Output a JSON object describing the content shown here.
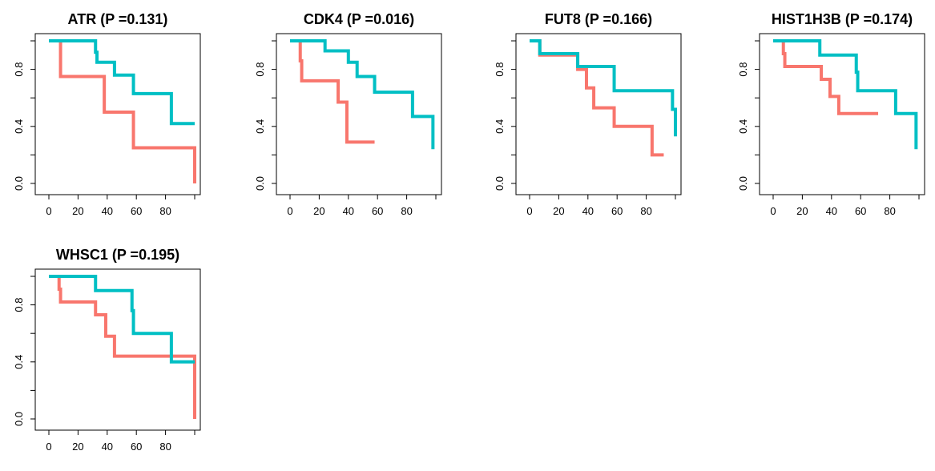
{
  "chart_data": [
    {
      "type": "line",
      "title": "ATR (P =0.131)",
      "xlabel": "",
      "ylabel": "",
      "xlim": [
        0,
        100
      ],
      "ylim": [
        0,
        1
      ],
      "xticks": [
        0,
        20,
        40,
        60,
        80
      ],
      "xtick_labels": [
        "0",
        "20",
        "40",
        "60",
        "80"
      ],
      "yticks": [
        0,
        0.4,
        0.8
      ],
      "ytick_labels": [
        "0.0",
        "0.4",
        "0.8"
      ],
      "step": true,
      "series": [
        {
          "color": "#F8766D",
          "x": [
            0,
            7,
            8,
            38,
            58,
            100,
            100
          ],
          "y": [
            1.0,
            1.0,
            0.75,
            0.5,
            0.25,
            0.25,
            0.0
          ]
        },
        {
          "color": "#00BFC4",
          "x": [
            0,
            32,
            33,
            45,
            58,
            84,
            100
          ],
          "y": [
            1.0,
            0.92,
            0.85,
            0.76,
            0.63,
            0.42,
            0.42
          ]
        }
      ]
    },
    {
      "type": "line",
      "title": "CDK4 (P =0.016)",
      "xlabel": "",
      "ylabel": "",
      "xlim": [
        0,
        100
      ],
      "ylim": [
        0,
        1
      ],
      "xticks": [
        0,
        20,
        40,
        60,
        80
      ],
      "xtick_labels": [
        "0",
        "20",
        "40",
        "60",
        "80"
      ],
      "yticks": [
        0,
        0.4,
        0.8
      ],
      "ytick_labels": [
        "0.0",
        "0.4",
        "0.8"
      ],
      "step": true,
      "series": [
        {
          "color": "#F8766D",
          "x": [
            0,
            7,
            8,
            33,
            39,
            58
          ],
          "y": [
            1.0,
            0.86,
            0.72,
            0.57,
            0.29,
            0.29
          ]
        },
        {
          "color": "#00BFC4",
          "x": [
            0,
            24,
            40,
            46,
            58,
            84,
            98,
            98
          ],
          "y": [
            1.0,
            0.93,
            0.85,
            0.75,
            0.64,
            0.47,
            0.35,
            0.24
          ]
        }
      ]
    },
    {
      "type": "line",
      "title": "FUT8 (P =0.166)",
      "xlabel": "",
      "ylabel": "",
      "xlim": [
        0,
        100
      ],
      "ylim": [
        0,
        1
      ],
      "xticks": [
        0,
        20,
        40,
        60,
        80
      ],
      "xtick_labels": [
        "0",
        "20",
        "40",
        "60",
        "80"
      ],
      "yticks": [
        0,
        0.4,
        0.8
      ],
      "ytick_labels": [
        "0.0",
        "0.4",
        "0.8"
      ],
      "step": true,
      "series": [
        {
          "color": "#F8766D",
          "x": [
            0,
            7,
            33,
            39,
            44,
            58,
            84,
            92
          ],
          "y": [
            1.0,
            0.9,
            0.8,
            0.67,
            0.53,
            0.4,
            0.2,
            0.2
          ]
        },
        {
          "color": "#00BFC4",
          "x": [
            0,
            7,
            33,
            58,
            98,
            100
          ],
          "y": [
            1.0,
            0.91,
            0.82,
            0.65,
            0.52,
            0.33
          ]
        }
      ]
    },
    {
      "type": "line",
      "title": "HIST1H3B (P =0.174)",
      "xlabel": "",
      "ylabel": "",
      "xlim": [
        0,
        100
      ],
      "ylim": [
        0,
        1
      ],
      "xticks": [
        0,
        20,
        40,
        60,
        80
      ],
      "xtick_labels": [
        "0",
        "20",
        "40",
        "60",
        "80"
      ],
      "yticks": [
        0,
        0.4,
        0.8
      ],
      "ytick_labels": [
        "0.0",
        "0.4",
        "0.8"
      ],
      "step": true,
      "series": [
        {
          "color": "#F8766D",
          "x": [
            0,
            7,
            8,
            33,
            39,
            45,
            72
          ],
          "y": [
            1.0,
            0.91,
            0.82,
            0.73,
            0.61,
            0.49,
            0.49
          ]
        },
        {
          "color": "#00BFC4",
          "x": [
            0,
            32,
            57,
            58,
            84,
            98,
            98
          ],
          "y": [
            1.0,
            0.9,
            0.78,
            0.65,
            0.49,
            0.35,
            0.24
          ]
        }
      ]
    },
    {
      "type": "line",
      "title": "WHSC1 (P =0.195)",
      "xlabel": "",
      "ylabel": "",
      "xlim": [
        0,
        100
      ],
      "ylim": [
        0,
        1
      ],
      "xticks": [
        0,
        20,
        40,
        60,
        80
      ],
      "xtick_labels": [
        "0",
        "20",
        "40",
        "60",
        "80"
      ],
      "yticks": [
        0,
        0.4,
        0.8
      ],
      "ytick_labels": [
        "0.0",
        "0.4",
        "0.8"
      ],
      "step": true,
      "series": [
        {
          "color": "#F8766D",
          "x": [
            0,
            7,
            8,
            32,
            39,
            45,
            100,
            100
          ],
          "y": [
            1.0,
            0.91,
            0.82,
            0.73,
            0.58,
            0.44,
            0.44,
            0.0
          ]
        },
        {
          "color": "#00BFC4",
          "x": [
            0,
            32,
            57,
            58,
            84,
            100
          ],
          "y": [
            1.0,
            0.9,
            0.76,
            0.6,
            0.4,
            0.4
          ]
        }
      ]
    }
  ]
}
